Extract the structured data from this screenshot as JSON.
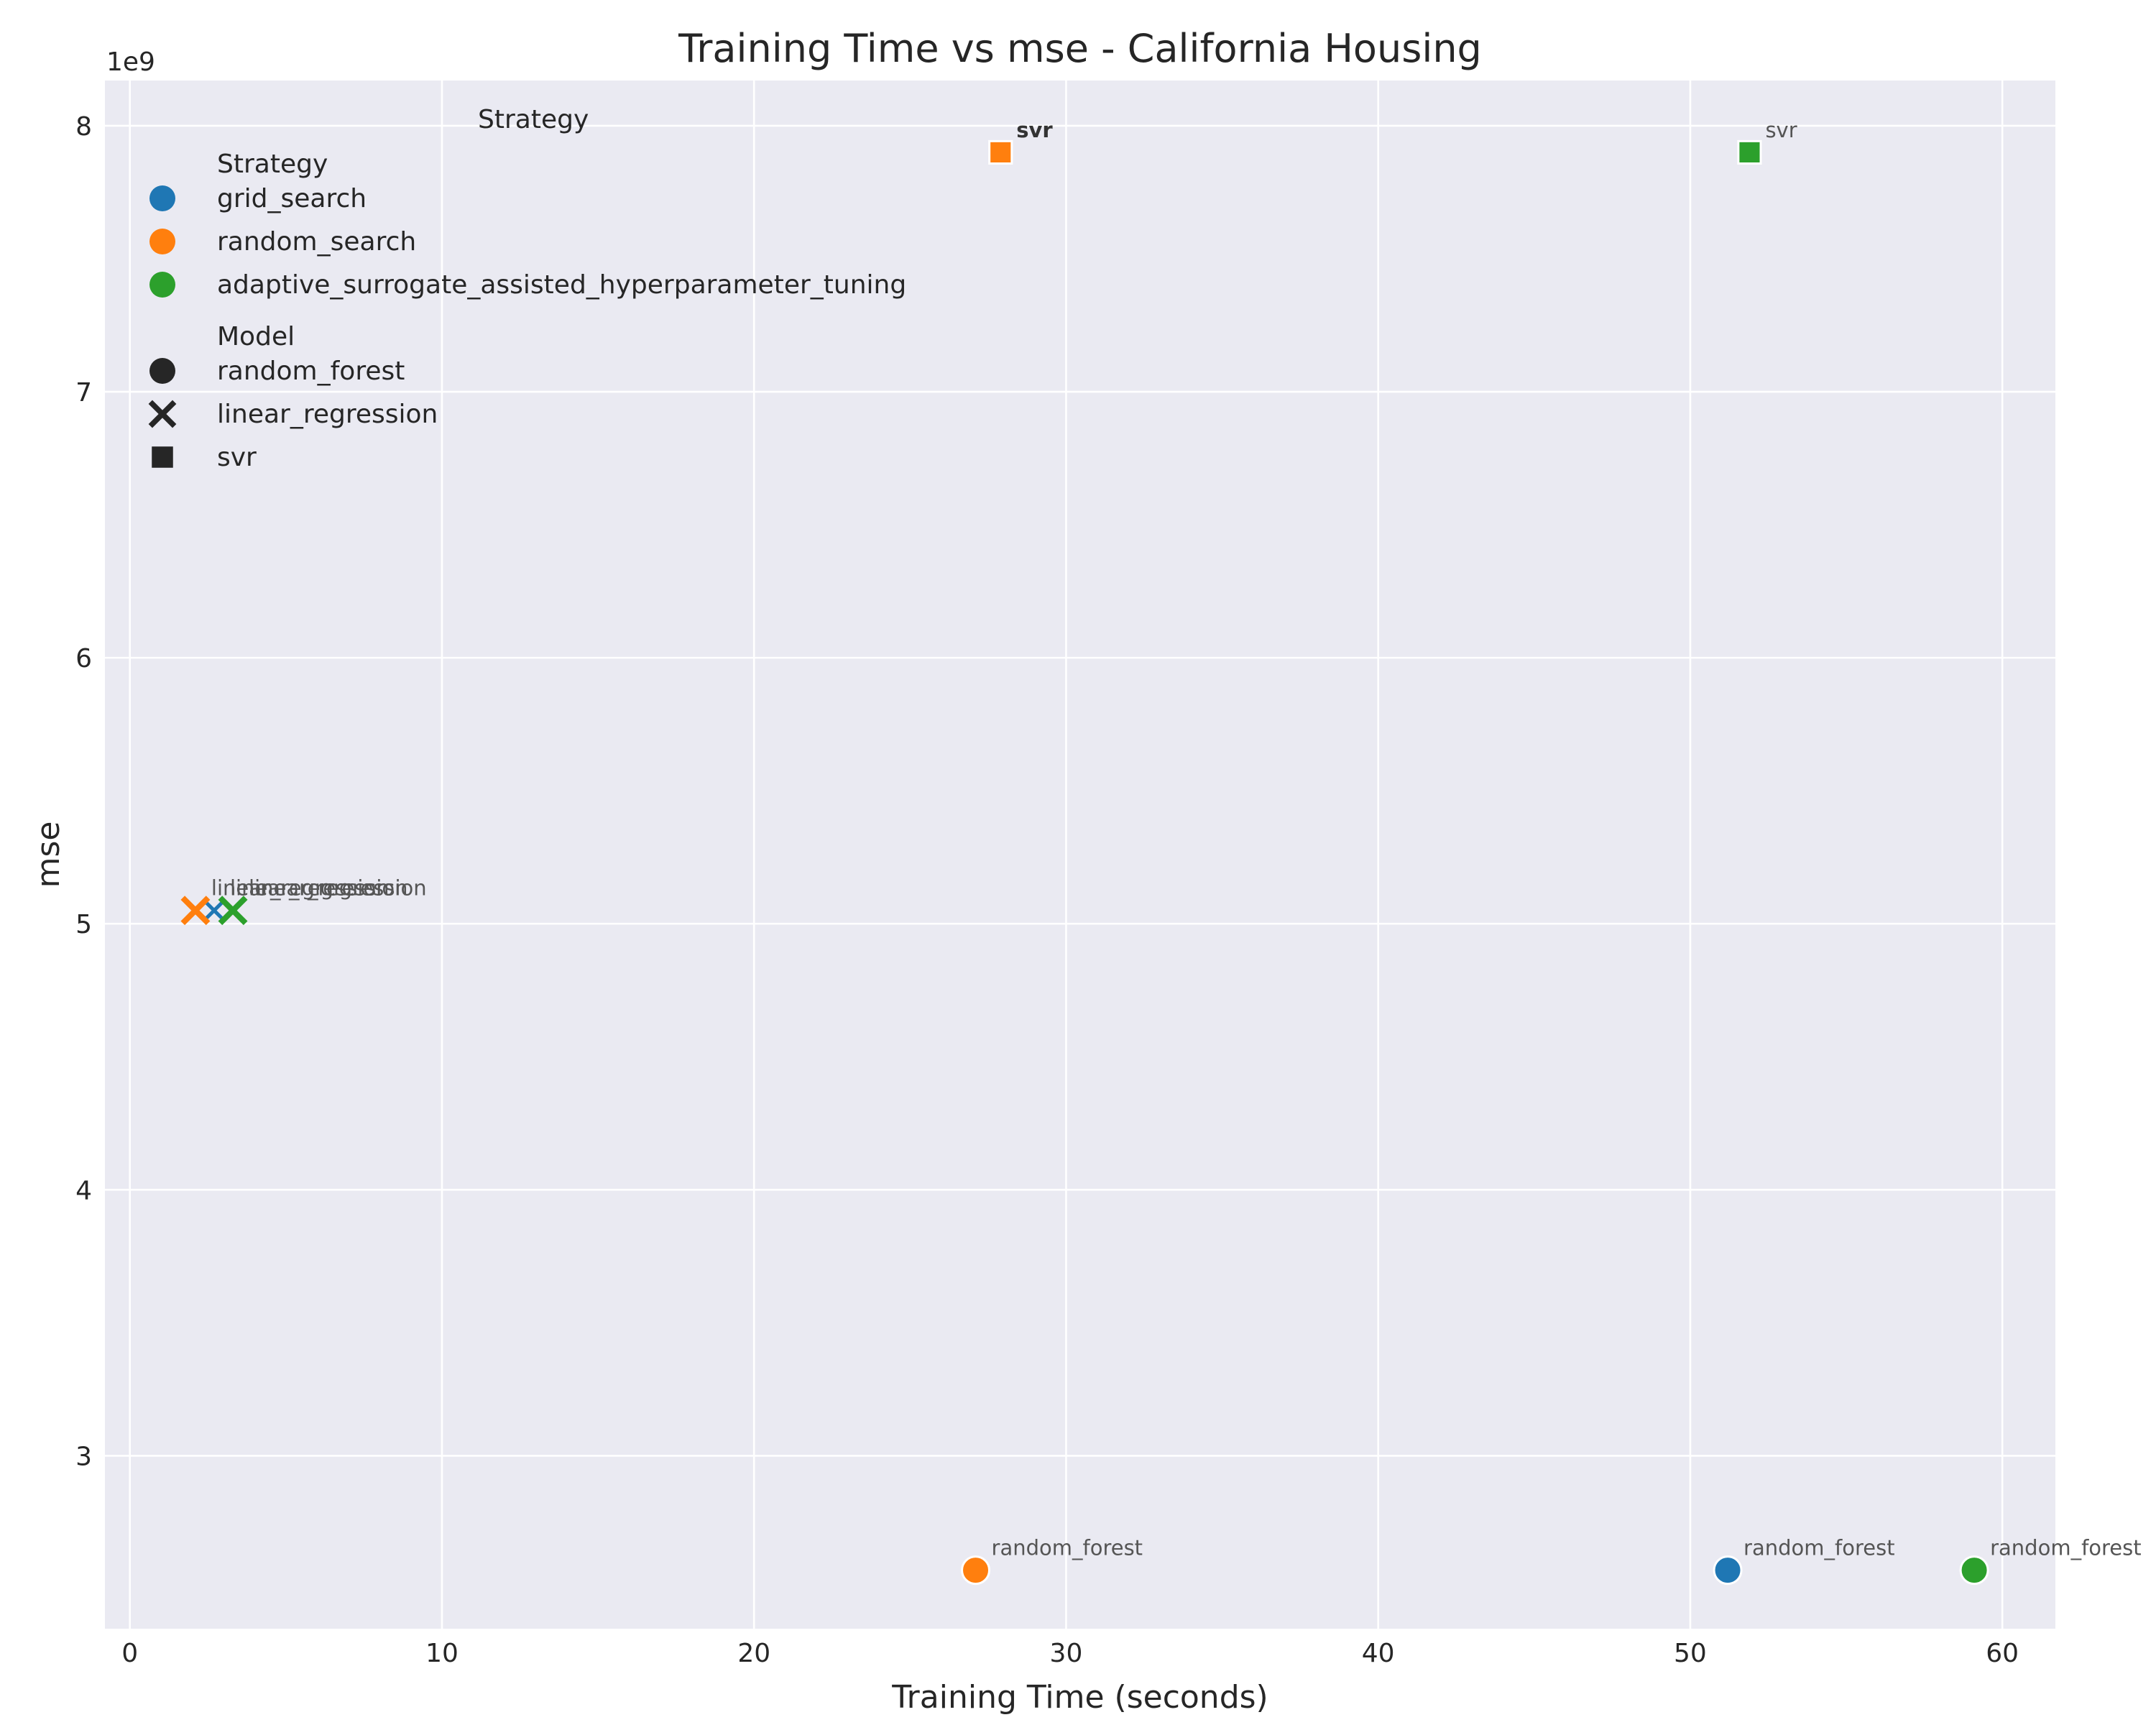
{
  "chart_data": {
    "type": "scatter",
    "title": "Training Time vs mse - California Housing",
    "xlabel": "Training Time (seconds)",
    "ylabel": "mse",
    "y_offset_label": "1e9",
    "xlim": [
      -0.8,
      61.7
    ],
    "ylim": [
      2.35,
      8.17
    ],
    "y_multiplier": 1000000000,
    "x_ticks": [
      0,
      10,
      20,
      30,
      40,
      50,
      60
    ],
    "x_tick_labels": [
      "0",
      "10",
      "20",
      "30",
      "40",
      "50",
      "60"
    ],
    "y_ticks": [
      3,
      4,
      5,
      6,
      7,
      8
    ],
    "y_tick_labels": [
      "3",
      "4",
      "5",
      "6",
      "7",
      "8"
    ],
    "grid": true,
    "legend": {
      "placement": "upper-left",
      "floating_title": "Strategy",
      "hue_title": "Strategy",
      "hue": [
        {
          "name": "grid_search",
          "color": "#1f77b4"
        },
        {
          "name": "random_search",
          "color": "#ff7f0e"
        },
        {
          "name": "adaptive_surrogate_assisted_hyperparameter_tuning",
          "color": "#2ca02c"
        }
      ],
      "style_title": "Model",
      "style": [
        {
          "name": "random_forest",
          "marker": "circle"
        },
        {
          "name": "linear_regression",
          "marker": "x"
        },
        {
          "name": "svr",
          "marker": "square"
        }
      ]
    },
    "points": [
      {
        "strategy": "grid_search",
        "model": "random_forest",
        "x": 51.2,
        "y": 2.57,
        "label": "random_forest",
        "bold": false
      },
      {
        "strategy": "random_search",
        "model": "random_forest",
        "x": 27.1,
        "y": 2.57,
        "label": "random_forest",
        "bold": false
      },
      {
        "strategy": "adaptive_surrogate_assisted_hyperparameter_tuning",
        "model": "random_forest",
        "x": 59.1,
        "y": 2.57,
        "label": "random_forest",
        "bold": false
      },
      {
        "strategy": "grid_search",
        "model": "linear_regression",
        "x": 2.7,
        "y": 5.05,
        "label": "linear_regression",
        "bold": false
      },
      {
        "strategy": "random_search",
        "model": "linear_regression",
        "x": 2.1,
        "y": 5.05,
        "label": "linear_regression",
        "bold": false
      },
      {
        "strategy": "adaptive_surrogate_assisted_hyperparameter_tuning",
        "model": "linear_regression",
        "x": 3.3,
        "y": 5.05,
        "label": "linear_regression",
        "bold": false
      },
      {
        "strategy": "random_search",
        "model": "svr",
        "x": 27.9,
        "y": 7.9,
        "label": "svr",
        "bold": true
      },
      {
        "strategy": "adaptive_surrogate_assisted_hyperparameter_tuning",
        "model": "svr",
        "x": 51.9,
        "y": 7.9,
        "label": "svr",
        "bold": false
      }
    ]
  }
}
